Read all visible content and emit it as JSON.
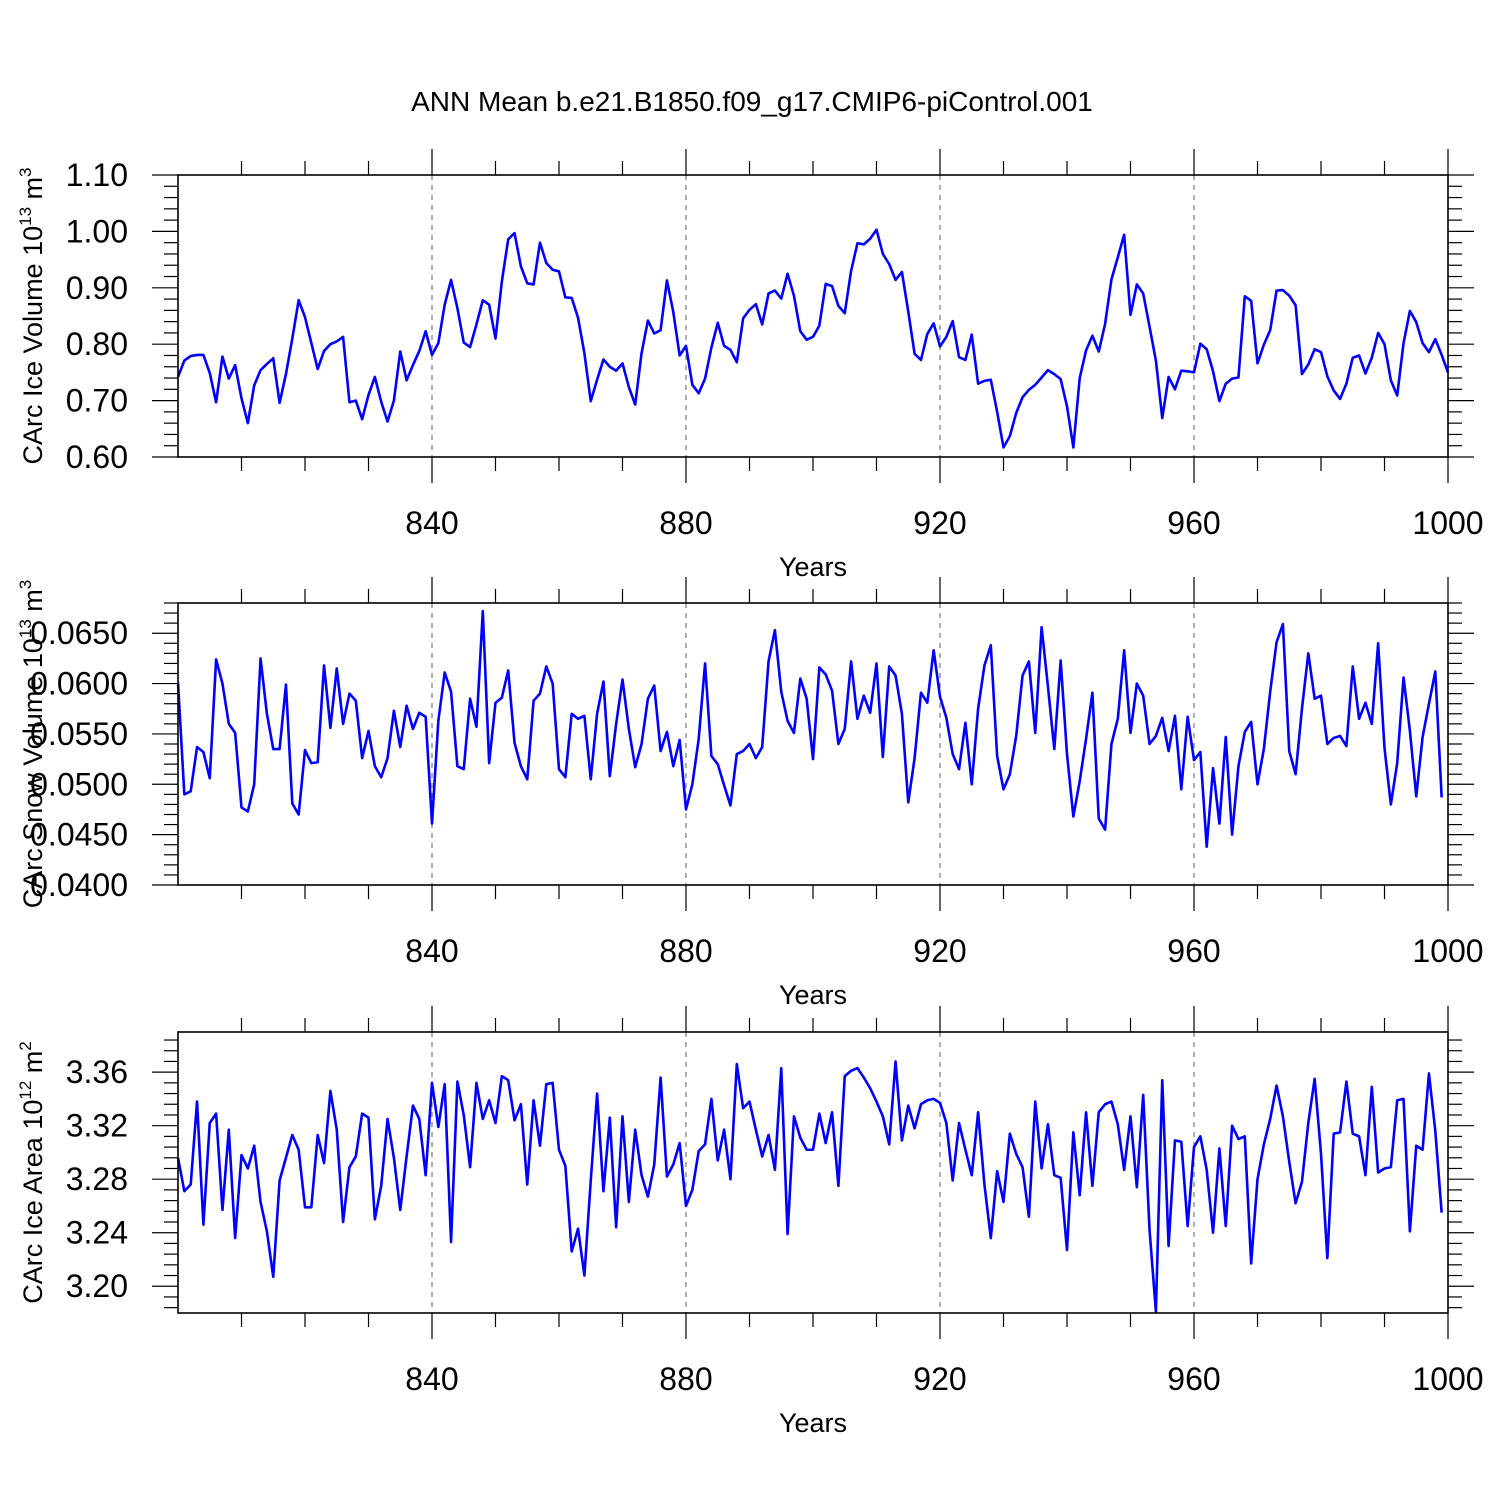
{
  "title": "ANN Mean b.e21.B1850.f09_g17.CMIP6-piControl.001",
  "colors": {
    "series": "#0000ff",
    "axis": "#000000",
    "grid": "#777777"
  },
  "chart_data": [
    {
      "type": "line",
      "id": "ice-volume",
      "xlabel": "Years",
      "ylabel": "CArc Ice Volume 10",
      "ylabel_exponent": "13",
      "ylabel_unit": " m",
      "ylabel_unit_exponent": "3",
      "xlim": [
        800,
        1000
      ],
      "ylim": [
        0.6,
        1.1
      ],
      "xticks": [
        840,
        880,
        920,
        960,
        1000
      ],
      "yticks": [
        "0.60",
        "0.70",
        "0.80",
        "0.90",
        "1.00",
        "1.10"
      ],
      "grid": "dashed vertical at major x ticks",
      "x_start": 800,
      "values": [
        0.742,
        0.771,
        0.779,
        0.781,
        0.781,
        0.749,
        0.697,
        0.778,
        0.739,
        0.763,
        0.704,
        0.66,
        0.727,
        0.754,
        0.765,
        0.775,
        0.696,
        0.747,
        0.81,
        0.878,
        0.848,
        0.802,
        0.756,
        0.788,
        0.8,
        0.805,
        0.813,
        0.697,
        0.7,
        0.667,
        0.71,
        0.742,
        0.698,
        0.663,
        0.7,
        0.787,
        0.736,
        0.763,
        0.788,
        0.823,
        0.781,
        0.802,
        0.87,
        0.914,
        0.864,
        0.803,
        0.795,
        0.835,
        0.878,
        0.87,
        0.81,
        0.911,
        0.986,
        0.997,
        0.938,
        0.908,
        0.906,
        0.98,
        0.944,
        0.932,
        0.929,
        0.883,
        0.882,
        0.847,
        0.784,
        0.699,
        0.737,
        0.773,
        0.76,
        0.753,
        0.766,
        0.724,
        0.693,
        0.784,
        0.842,
        0.819,
        0.825,
        0.913,
        0.857,
        0.78,
        0.797,
        0.728,
        0.713,
        0.739,
        0.794,
        0.838,
        0.797,
        0.79,
        0.768,
        0.846,
        0.861,
        0.871,
        0.835,
        0.89,
        0.895,
        0.881,
        0.925,
        0.886,
        0.823,
        0.808,
        0.813,
        0.833,
        0.907,
        0.903,
        0.868,
        0.855,
        0.93,
        0.979,
        0.977,
        0.987,
        1.003,
        0.96,
        0.942,
        0.914,
        0.928,
        0.858,
        0.783,
        0.772,
        0.818,
        0.837,
        0.796,
        0.813,
        0.841,
        0.777,
        0.772,
        0.817,
        0.73,
        0.735,
        0.737,
        0.68,
        0.617,
        0.637,
        0.678,
        0.706,
        0.719,
        0.728,
        0.741,
        0.754,
        0.747,
        0.738,
        0.69,
        0.617,
        0.74,
        0.789,
        0.815,
        0.787,
        0.836,
        0.915,
        0.954,
        0.994,
        0.852,
        0.906,
        0.89,
        0.831,
        0.771,
        0.669,
        0.742,
        0.72,
        0.753,
        0.752,
        0.75,
        0.801,
        0.791,
        0.752,
        0.699,
        0.73,
        0.739,
        0.741,
        0.885,
        0.877,
        0.766,
        0.799,
        0.825,
        0.895,
        0.896,
        0.886,
        0.869,
        0.747,
        0.764,
        0.791,
        0.786,
        0.743,
        0.718,
        0.703,
        0.73,
        0.776,
        0.78,
        0.748,
        0.776,
        0.82,
        0.8,
        0.736,
        0.709,
        0.802,
        0.859,
        0.839,
        0.802,
        0.786,
        0.809,
        0.781,
        0.75
      ]
    },
    {
      "type": "line",
      "id": "snow-volume",
      "xlabel": "Years",
      "ylabel": "CArc Snow Volume 10",
      "ylabel_exponent": "13",
      "ylabel_unit": " m",
      "ylabel_unit_exponent": "3",
      "xlim": [
        800,
        1000
      ],
      "ylim": [
        0.04,
        0.068
      ],
      "xticks": [
        840,
        880,
        920,
        960,
        1000
      ],
      "yticks": [
        "0.0400",
        "0.0450",
        "0.0500",
        "0.0550",
        "0.0600",
        "0.0650"
      ],
      "grid": "dashed vertical at major x ticks",
      "x_start": 800,
      "values": [
        0.0601,
        0.049,
        0.0493,
        0.0537,
        0.0532,
        0.0506,
        0.0624,
        0.06,
        0.056,
        0.0551,
        0.0477,
        0.0473,
        0.05,
        0.0625,
        0.057,
        0.0535,
        0.0535,
        0.0599,
        0.0481,
        0.047,
        0.0534,
        0.0521,
        0.0522,
        0.0618,
        0.0556,
        0.0615,
        0.056,
        0.059,
        0.0583,
        0.0526,
        0.0553,
        0.0518,
        0.0507,
        0.0526,
        0.0573,
        0.0537,
        0.0578,
        0.0555,
        0.0571,
        0.0567,
        0.0461,
        0.0563,
        0.0611,
        0.0592,
        0.0518,
        0.0515,
        0.0585,
        0.0557,
        0.0672,
        0.0521,
        0.0581,
        0.0586,
        0.0613,
        0.0541,
        0.0518,
        0.0505,
        0.0583,
        0.059,
        0.0617,
        0.06,
        0.0515,
        0.0507,
        0.057,
        0.0565,
        0.0568,
        0.0505,
        0.057,
        0.0602,
        0.0508,
        0.056,
        0.0604,
        0.0555,
        0.0517,
        0.054,
        0.0585,
        0.0598,
        0.0533,
        0.0552,
        0.0518,
        0.0544,
        0.0475,
        0.05,
        0.0545,
        0.062,
        0.0528,
        0.052,
        0.0499,
        0.0479,
        0.053,
        0.0533,
        0.054,
        0.0526,
        0.0537,
        0.0622,
        0.0653,
        0.0592,
        0.0563,
        0.0551,
        0.0605,
        0.0585,
        0.0525,
        0.0616,
        0.0609,
        0.0593,
        0.054,
        0.0555,
        0.0622,
        0.0565,
        0.0588,
        0.0571,
        0.062,
        0.0527,
        0.0617,
        0.0608,
        0.057,
        0.0482,
        0.0526,
        0.0591,
        0.0581,
        0.0633,
        0.0587,
        0.0566,
        0.053,
        0.0515,
        0.0561,
        0.05,
        0.0575,
        0.0618,
        0.0638,
        0.0528,
        0.0495,
        0.051,
        0.0548,
        0.0608,
        0.0622,
        0.0551,
        0.0656,
        0.0597,
        0.0535,
        0.0623,
        0.053,
        0.0468,
        0.0503,
        0.0545,
        0.0591,
        0.0466,
        0.0455,
        0.054,
        0.0565,
        0.0633,
        0.0551,
        0.06,
        0.0588,
        0.054,
        0.0548,
        0.0566,
        0.0533,
        0.0568,
        0.0495,
        0.0567,
        0.0524,
        0.0532,
        0.0438,
        0.0516,
        0.0461,
        0.0547,
        0.045,
        0.0518,
        0.0552,
        0.0562,
        0.05,
        0.0535,
        0.0592,
        0.0641,
        0.0659,
        0.0533,
        0.051,
        0.0575,
        0.063,
        0.0585,
        0.0588,
        0.054,
        0.0546,
        0.0548,
        0.0538,
        0.0617,
        0.0565,
        0.0581,
        0.056,
        0.064,
        0.0536,
        0.048,
        0.0521,
        0.0606,
        0.0553,
        0.0488,
        0.0547,
        0.058,
        0.0612,
        0.0487
      ]
    },
    {
      "type": "line",
      "id": "ice-area",
      "xlabel": "Years",
      "ylabel": "CArc Ice Area 10",
      "ylabel_exponent": "12",
      "ylabel_unit": " m",
      "ylabel_unit_exponent": "2",
      "xlim": [
        800,
        1000
      ],
      "ylim": [
        3.18,
        3.39
      ],
      "xticks": [
        840,
        880,
        920,
        960,
        1000
      ],
      "yticks": [
        "3.20",
        "3.24",
        "3.28",
        "3.32",
        "3.36"
      ],
      "grid": "dashed vertical at major x ticks",
      "x_start": 800,
      "values": [
        3.296,
        3.271,
        3.276,
        3.338,
        3.246,
        3.322,
        3.329,
        3.257,
        3.317,
        3.236,
        3.298,
        3.288,
        3.305,
        3.263,
        3.241,
        3.207,
        3.279,
        3.296,
        3.313,
        3.302,
        3.259,
        3.259,
        3.313,
        3.292,
        3.346,
        3.317,
        3.248,
        3.289,
        3.297,
        3.329,
        3.326,
        3.25,
        3.275,
        3.325,
        3.296,
        3.257,
        3.297,
        3.335,
        3.325,
        3.283,
        3.352,
        3.319,
        3.351,
        3.233,
        3.353,
        3.328,
        3.289,
        3.352,
        3.325,
        3.339,
        3.322,
        3.357,
        3.354,
        3.324,
        3.336,
        3.276,
        3.339,
        3.305,
        3.351,
        3.352,
        3.302,
        3.29,
        3.226,
        3.243,
        3.208,
        3.279,
        3.344,
        3.271,
        3.326,
        3.244,
        3.327,
        3.263,
        3.317,
        3.283,
        3.267,
        3.291,
        3.356,
        3.282,
        3.291,
        3.307,
        3.26,
        3.272,
        3.301,
        3.306,
        3.34,
        3.294,
        3.317,
        3.28,
        3.366,
        3.333,
        3.338,
        3.317,
        3.297,
        3.313,
        3.287,
        3.363,
        3.239,
        3.327,
        3.311,
        3.302,
        3.302,
        3.329,
        3.307,
        3.33,
        3.275,
        3.357,
        3.361,
        3.363,
        3.356,
        3.348,
        3.338,
        3.327,
        3.306,
        3.368,
        3.309,
        3.335,
        3.318,
        3.336,
        3.339,
        3.34,
        3.337,
        3.322,
        3.279,
        3.322,
        3.302,
        3.283,
        3.33,
        3.276,
        3.236,
        3.286,
        3.263,
        3.314,
        3.299,
        3.289,
        3.252,
        3.338,
        3.288,
        3.321,
        3.283,
        3.281,
        3.227,
        3.315,
        3.268,
        3.33,
        3.275,
        3.33,
        3.336,
        3.338,
        3.321,
        3.287,
        3.327,
        3.274,
        3.343,
        3.242,
        3.181,
        3.354,
        3.23,
        3.309,
        3.308,
        3.245,
        3.304,
        3.312,
        3.287,
        3.24,
        3.303,
        3.245,
        3.32,
        3.31,
        3.312,
        3.217,
        3.28,
        3.306,
        3.325,
        3.35,
        3.327,
        3.293,
        3.262,
        3.278,
        3.322,
        3.355,
        3.299,
        3.221,
        3.314,
        3.315,
        3.353,
        3.314,
        3.312,
        3.283,
        3.349,
        3.285,
        3.288,
        3.289,
        3.339,
        3.34,
        3.241,
        3.305,
        3.302,
        3.359,
        3.316,
        3.255
      ]
    }
  ]
}
